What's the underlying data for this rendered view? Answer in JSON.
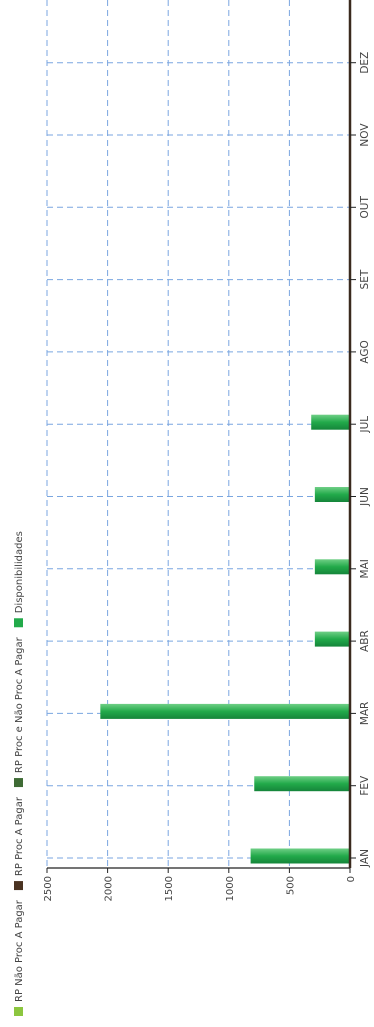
{
  "chart_data": {
    "type": "bar",
    "orientation": "vertical-bars-rotated",
    "categories": [
      "JAN",
      "FEV",
      "MAR",
      "ABR",
      "MAI",
      "JUN",
      "JUL",
      "AGO",
      "SET",
      "OUT",
      "NOV",
      "DEZ"
    ],
    "ylim": [
      0,
      2500
    ],
    "yticks": [
      0,
      500,
      1000,
      1500,
      2000,
      2500
    ],
    "grid": true,
    "legend_position": "left",
    "series": [
      {
        "name": "RP Não Proc A Pagar",
        "color": "#8cc63f",
        "values": [
          0,
          0,
          0,
          0,
          0,
          0,
          0,
          0,
          0,
          0,
          0,
          0
        ]
      },
      {
        "name": "RP Proc A Pagar",
        "color": "#4a3322",
        "values": [
          0,
          0,
          0,
          0,
          0,
          0,
          0,
          0,
          0,
          0,
          0,
          0
        ]
      },
      {
        "name": "RP Proc e Não Proc A Pagar",
        "color": "#3f6b35",
        "values": [
          0,
          0,
          0,
          0,
          0,
          0,
          0,
          0,
          0,
          0,
          0,
          0
        ]
      },
      {
        "name": "Disponibilidades",
        "color": "#22aa4a",
        "values": [
          820,
          790,
          2060,
          290,
          290,
          290,
          320,
          0,
          0,
          0,
          0,
          0
        ]
      }
    ]
  }
}
